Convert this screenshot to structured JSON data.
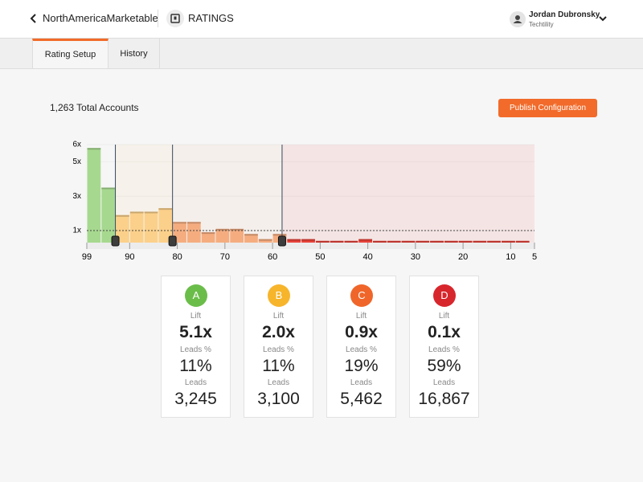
{
  "header": {
    "back_title": "NorthAmericaMarketable",
    "section": "RATINGS",
    "user_name": "Jordan Dubronsky",
    "user_org": "Techtility"
  },
  "tabs": [
    "Rating Setup",
    "History"
  ],
  "summary": "1,263 Total Accounts",
  "button": "Publish Configuration",
  "chart_data": {
    "type": "histogram",
    "bins": [
      99,
      96,
      93,
      90,
      87,
      84,
      81,
      78,
      75,
      72,
      69,
      66,
      63,
      60,
      57,
      54,
      51,
      48,
      45,
      42,
      39,
      36,
      33,
      30,
      27,
      24,
      21,
      18,
      15,
      12,
      9,
      6
    ],
    "values": [
      5.8,
      3.5,
      1.9,
      2.1,
      2.1,
      2.3,
      1.5,
      1.5,
      0.9,
      1.1,
      1.1,
      0.8,
      0.5,
      0.8,
      0.5,
      0.5,
      0.4,
      0.4,
      0.4,
      0.5,
      0.4,
      0.4,
      0.4,
      0.4,
      0.4,
      0.4,
      0.4,
      0.4,
      0.4,
      0.4,
      0.4
    ],
    "xlim": [
      99,
      5
    ],
    "xticks": [
      99,
      90,
      80,
      70,
      60,
      50,
      40,
      30,
      20,
      10,
      5
    ],
    "ylim": [
      0.3,
      6
    ],
    "yticks": [
      {
        "value": 1,
        "label": "1x"
      },
      {
        "value": 3,
        "label": "3x"
      },
      {
        "value": 5,
        "label": "5x"
      },
      {
        "value": 6,
        "label": "6x"
      }
    ],
    "thresholds": [
      93,
      81,
      58
    ],
    "reference": 1,
    "band_colors": [
      "#a6d98f",
      "#fbd08a",
      "#f5ad80",
      "#e8433a"
    ]
  },
  "card_labels": {
    "lift": "Lift",
    "leads_pct": "Leads %",
    "leads": "Leads"
  },
  "cards": [
    {
      "grade": "A",
      "color": "#6bbd4a",
      "lift": "5.1x",
      "leads_pct": "11%",
      "leads": "3,245"
    },
    {
      "grade": "B",
      "color": "#f7b52c",
      "lift": "2.0x",
      "leads_pct": "11%",
      "leads": "3,100"
    },
    {
      "grade": "C",
      "color": "#f0662a",
      "lift": "0.9x",
      "leads_pct": "19%",
      "leads": "5,462"
    },
    {
      "grade": "D",
      "color": "#d8262d",
      "lift": "0.1x",
      "leads_pct": "59%",
      "leads": "16,867"
    }
  ]
}
